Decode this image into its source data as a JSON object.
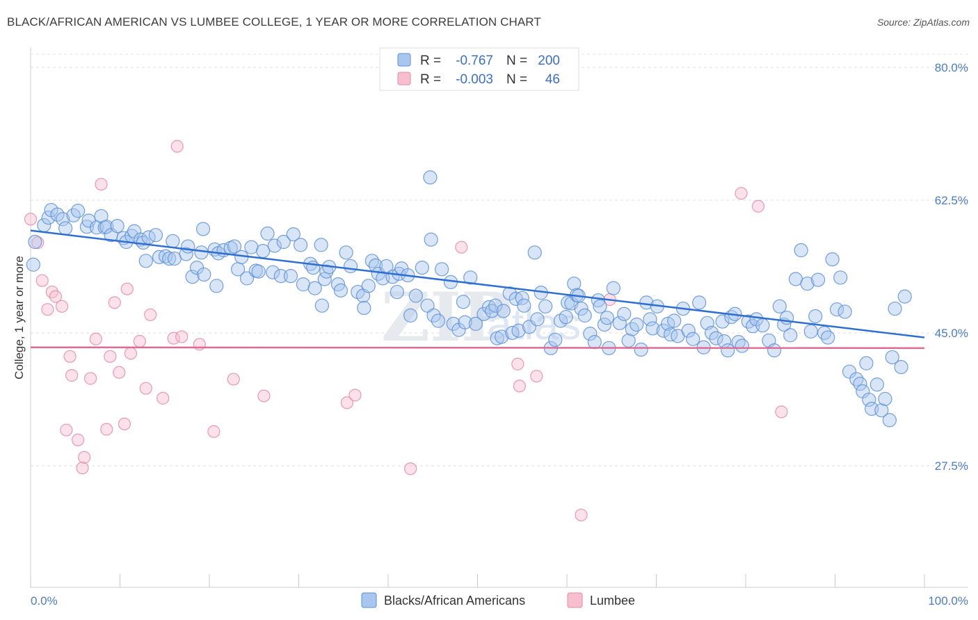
{
  "title": "BLACK/AFRICAN AMERICAN VS LUMBEE COLLEGE, 1 YEAR OR MORE CORRELATION CHART",
  "source": "Source: ZipAtlas.com",
  "watermark": {
    "zip": "ZIP",
    "atlas": "atlas"
  },
  "colors": {
    "blue_fill": "#a9c6ee",
    "blue_stroke": "#5b8fd9",
    "blue_line": "#2f6fd0",
    "pink_fill": "#f6bfd0",
    "pink_stroke": "#e58aa6",
    "pink_line": "#e06a92",
    "tick_text": "#4a7cc9",
    "grid": "#dddddd"
  },
  "legend": {
    "r_label": "R =",
    "n_label": "N =",
    "rows": [
      {
        "r": "-0.767",
        "n": "200"
      },
      {
        "r": "-0.003",
        "n": "46"
      }
    ]
  },
  "chart_data": {
    "type": "scatter",
    "title": "BLACK/AFRICAN AMERICAN VS LUMBEE COLLEGE, 1 YEAR OR MORE CORRELATION CHART",
    "xlabel": "",
    "ylabel": "College, 1 year or more",
    "xlim": [
      0,
      100
    ],
    "ylim": [
      10,
      84
    ],
    "y_ticks": [
      27.5,
      45.0,
      62.5,
      80.0
    ],
    "y_tick_labels": [
      "27.5%",
      "45.0%",
      "62.5%",
      "80.0%"
    ],
    "x_tick_labels": [
      "0.0%",
      "100.0%"
    ],
    "grid": true,
    "legend_position": "top-center",
    "series": [
      {
        "name": "Blacks/African Americans",
        "color": "#5b8fd9",
        "trend": {
          "x": [
            0,
            100
          ],
          "y": [
            58.5,
            44.4
          ]
        },
        "points": [
          [
            0.3,
            54.0
          ],
          [
            0.5,
            57.0
          ],
          [
            1.5,
            59.2
          ],
          [
            2.0,
            60.2
          ],
          [
            2.3,
            61.2
          ],
          [
            3.0,
            60.6
          ],
          [
            3.6,
            60.0
          ],
          [
            3.9,
            58.8
          ],
          [
            4.8,
            60.5
          ],
          [
            5.3,
            61.1
          ],
          [
            6.3,
            59.0
          ],
          [
            6.5,
            59.8
          ],
          [
            7.4,
            58.9
          ],
          [
            7.9,
            60.4
          ],
          [
            8.3,
            58.9
          ],
          [
            8.5,
            59.0
          ],
          [
            9.0,
            57.9
          ],
          [
            9.7,
            59.1
          ],
          [
            10.4,
            57.5
          ],
          [
            10.7,
            57.0
          ],
          [
            11.3,
            57.8
          ],
          [
            11.6,
            58.4
          ],
          [
            12.3,
            57.3
          ],
          [
            12.6,
            56.9
          ],
          [
            12.9,
            54.5
          ],
          [
            13.2,
            57.6
          ],
          [
            14.0,
            57.9
          ],
          [
            14.4,
            55.0
          ],
          [
            15.1,
            55.1
          ],
          [
            15.5,
            54.8
          ],
          [
            15.9,
            57.1
          ],
          [
            16.1,
            54.8
          ],
          [
            17.4,
            55.4
          ],
          [
            17.6,
            56.4
          ],
          [
            18.1,
            52.4
          ],
          [
            18.6,
            53.6
          ],
          [
            19.1,
            55.6
          ],
          [
            19.3,
            58.7
          ],
          [
            19.4,
            52.7
          ],
          [
            20.6,
            56.0
          ],
          [
            20.8,
            51.2
          ],
          [
            21.0,
            55.5
          ],
          [
            21.6,
            55.9
          ],
          [
            22.4,
            56.2
          ],
          [
            22.8,
            56.4
          ],
          [
            23.2,
            53.4
          ],
          [
            23.6,
            55.0
          ],
          [
            24.2,
            52.2
          ],
          [
            24.7,
            56.3
          ],
          [
            25.2,
            53.2
          ],
          [
            25.5,
            53.1
          ],
          [
            26.0,
            55.8
          ],
          [
            26.5,
            58.1
          ],
          [
            27.1,
            53.0
          ],
          [
            27.3,
            56.5
          ],
          [
            28.0,
            52.5
          ],
          [
            28.3,
            57.0
          ],
          [
            29.1,
            52.5
          ],
          [
            29.4,
            58.0
          ],
          [
            30.2,
            56.6
          ],
          [
            30.5,
            51.4
          ],
          [
            31.3,
            54.1
          ],
          [
            31.6,
            53.6
          ],
          [
            31.8,
            50.9
          ],
          [
            32.5,
            56.6
          ],
          [
            32.6,
            48.6
          ],
          [
            32.9,
            52.1
          ],
          [
            33.1,
            53.1
          ],
          [
            33.4,
            53.7
          ],
          [
            34.4,
            51.4
          ],
          [
            34.7,
            50.6
          ],
          [
            35.3,
            55.6
          ],
          [
            35.8,
            53.8
          ],
          [
            36.6,
            50.4
          ],
          [
            37.2,
            49.9
          ],
          [
            37.3,
            48.3
          ],
          [
            37.8,
            51.2
          ],
          [
            38.2,
            54.5
          ],
          [
            38.6,
            53.9
          ],
          [
            38.9,
            52.8
          ],
          [
            39.4,
            52.2
          ],
          [
            39.8,
            53.8
          ],
          [
            40.5,
            52.4
          ],
          [
            41.0,
            50.4
          ],
          [
            41.2,
            52.8
          ],
          [
            41.5,
            53.5
          ],
          [
            42.2,
            52.6
          ],
          [
            42.5,
            47.3
          ],
          [
            43.1,
            49.9
          ],
          [
            43.8,
            53.6
          ],
          [
            44.4,
            48.6
          ],
          [
            44.7,
            65.5
          ],
          [
            44.8,
            57.3
          ],
          [
            45.1,
            47.3
          ],
          [
            45.6,
            46.6
          ],
          [
            46.0,
            53.4
          ],
          [
            47.0,
            51.7
          ],
          [
            47.3,
            46.2
          ],
          [
            47.9,
            45.4
          ],
          [
            48.4,
            49.1
          ],
          [
            48.6,
            46.4
          ],
          [
            49.2,
            52.3
          ],
          [
            49.8,
            46.2
          ],
          [
            50.7,
            47.5
          ],
          [
            51.3,
            48.4
          ],
          [
            51.6,
            47.9
          ],
          [
            52.0,
            48.6
          ],
          [
            52.2,
            44.3
          ],
          [
            52.7,
            44.5
          ],
          [
            52.9,
            47.9
          ],
          [
            53.6,
            50.2
          ],
          [
            53.9,
            45.0
          ],
          [
            54.3,
            49.5
          ],
          [
            54.6,
            45.3
          ],
          [
            55.0,
            49.6
          ],
          [
            55.2,
            48.6
          ],
          [
            55.8,
            45.8
          ],
          [
            56.4,
            55.6
          ],
          [
            56.7,
            46.8
          ],
          [
            57.1,
            50.3
          ],
          [
            57.6,
            48.5
          ],
          [
            58.2,
            43.0
          ],
          [
            58.7,
            44.1
          ],
          [
            59.3,
            46.6
          ],
          [
            59.9,
            47.1
          ],
          [
            60.1,
            49.0
          ],
          [
            60.5,
            48.9
          ],
          [
            60.8,
            51.5
          ],
          [
            61.1,
            50.0
          ],
          [
            61.3,
            49.9
          ],
          [
            61.6,
            48.2
          ],
          [
            62.0,
            47.3
          ],
          [
            62.6,
            44.9
          ],
          [
            63.1,
            43.8
          ],
          [
            63.5,
            49.3
          ],
          [
            63.7,
            48.5
          ],
          [
            64.2,
            46.1
          ],
          [
            64.5,
            47.0
          ],
          [
            64.7,
            43.0
          ],
          [
            65.2,
            50.9
          ],
          [
            65.9,
            46.3
          ],
          [
            66.4,
            47.5
          ],
          [
            66.9,
            44.0
          ],
          [
            67.3,
            45.5
          ],
          [
            67.8,
            46.1
          ],
          [
            68.3,
            42.8
          ],
          [
            68.9,
            49.0
          ],
          [
            69.3,
            46.8
          ],
          [
            69.6,
            45.6
          ],
          [
            70.1,
            48.5
          ],
          [
            70.8,
            45.3
          ],
          [
            71.3,
            46.2
          ],
          [
            71.6,
            44.8
          ],
          [
            72.0,
            46.6
          ],
          [
            72.4,
            44.6
          ],
          [
            73.0,
            48.2
          ],
          [
            73.6,
            45.3
          ],
          [
            74.1,
            44.2
          ],
          [
            74.8,
            49.0
          ],
          [
            75.3,
            43.1
          ],
          [
            75.7,
            46.3
          ],
          [
            76.2,
            45.0
          ],
          [
            76.7,
            44.3
          ],
          [
            77.4,
            46.5
          ],
          [
            77.6,
            43.9
          ],
          [
            78.0,
            42.7
          ],
          [
            78.4,
            47.1
          ],
          [
            78.8,
            47.5
          ],
          [
            79.2,
            43.8
          ],
          [
            79.6,
            43.3
          ],
          [
            80.3,
            46.5
          ],
          [
            80.8,
            45.9
          ],
          [
            81.2,
            46.8
          ],
          [
            81.9,
            46.0
          ],
          [
            82.6,
            44.0
          ],
          [
            83.2,
            42.7
          ],
          [
            83.8,
            48.5
          ],
          [
            84.3,
            46.1
          ],
          [
            84.6,
            47.0
          ],
          [
            85.0,
            44.7
          ],
          [
            85.6,
            52.1
          ],
          [
            86.2,
            55.9
          ],
          [
            86.9,
            51.5
          ],
          [
            87.3,
            45.2
          ],
          [
            87.8,
            47.2
          ],
          [
            88.1,
            52.0
          ],
          [
            88.8,
            45.0
          ],
          [
            89.2,
            44.4
          ],
          [
            89.7,
            54.7
          ],
          [
            90.2,
            48.1
          ],
          [
            90.6,
            52.3
          ],
          [
            91.1,
            47.8
          ],
          [
            91.6,
            39.9
          ],
          [
            92.4,
            38.9
          ],
          [
            92.8,
            38.3
          ],
          [
            93.1,
            37.3
          ],
          [
            93.5,
            41.0
          ],
          [
            93.8,
            36.2
          ],
          [
            94.1,
            35.0
          ],
          [
            94.7,
            38.2
          ],
          [
            95.2,
            34.8
          ],
          [
            95.6,
            36.3
          ],
          [
            96.1,
            33.5
          ],
          [
            96.4,
            41.8
          ],
          [
            96.7,
            48.2
          ],
          [
            97.4,
            40.5
          ],
          [
            97.8,
            49.8
          ]
        ]
      },
      {
        "name": "Lumbee",
        "color": "#e58aa6",
        "trend": {
          "x": [
            0,
            100
          ],
          "y": [
            43.1,
            43.0
          ]
        },
        "points": [
          [
            0.0,
            60.0
          ],
          [
            0.8,
            56.9
          ],
          [
            1.3,
            51.9
          ],
          [
            1.9,
            48.1
          ],
          [
            2.4,
            50.4
          ],
          [
            2.8,
            49.8
          ],
          [
            3.5,
            48.5
          ],
          [
            4.0,
            32.2
          ],
          [
            4.4,
            41.9
          ],
          [
            4.6,
            39.4
          ],
          [
            5.3,
            30.9
          ],
          [
            5.8,
            27.2
          ],
          [
            6.0,
            28.6
          ],
          [
            6.7,
            39.0
          ],
          [
            7.3,
            44.2
          ],
          [
            7.9,
            64.6
          ],
          [
            8.5,
            32.3
          ],
          [
            8.9,
            41.9
          ],
          [
            9.4,
            49.0
          ],
          [
            9.9,
            39.8
          ],
          [
            10.5,
            33.0
          ],
          [
            10.8,
            50.8
          ],
          [
            11.2,
            42.3
          ],
          [
            12.2,
            43.9
          ],
          [
            12.9,
            37.7
          ],
          [
            13.4,
            47.4
          ],
          [
            14.8,
            36.4
          ],
          [
            16.0,
            44.3
          ],
          [
            16.4,
            69.6
          ],
          [
            16.9,
            44.5
          ],
          [
            18.9,
            43.5
          ],
          [
            20.5,
            32.0
          ],
          [
            22.7,
            38.9
          ],
          [
            26.1,
            36.7
          ],
          [
            35.4,
            35.8
          ],
          [
            36.3,
            36.8
          ],
          [
            42.5,
            27.1
          ],
          [
            48.2,
            56.3
          ],
          [
            54.5,
            40.9
          ],
          [
            54.7,
            38.0
          ],
          [
            56.6,
            39.3
          ],
          [
            61.6,
            21.0
          ],
          [
            64.8,
            49.4
          ],
          [
            79.5,
            63.4
          ],
          [
            81.4,
            61.7
          ],
          [
            84.0,
            34.6
          ]
        ]
      }
    ]
  }
}
